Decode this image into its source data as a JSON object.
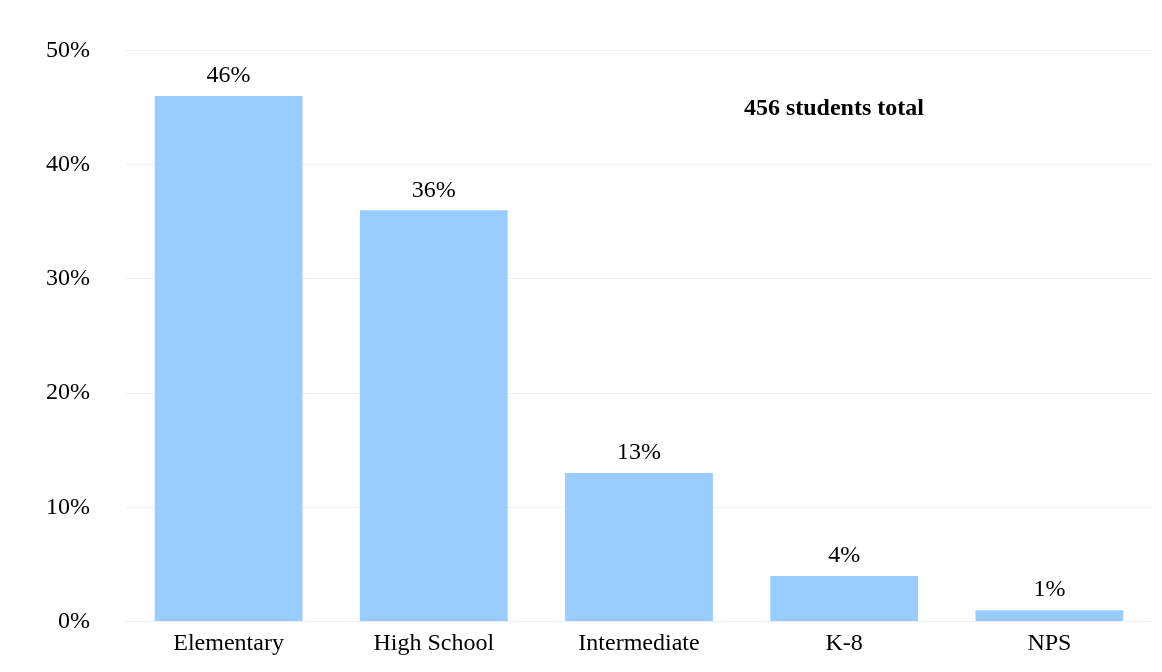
{
  "chart_data": {
    "type": "bar",
    "categories": [
      "Elementary",
      "High School",
      "Intermediate",
      "K-8",
      "NPS"
    ],
    "values": [
      46,
      36,
      13,
      4,
      1
    ],
    "value_labels": [
      "46%",
      "36%",
      "13%",
      "4%",
      "1%"
    ],
    "color": "#99ccff",
    "ylim": [
      0,
      50
    ],
    "yticks": [
      {
        "value": 0,
        "label": "0%"
      },
      {
        "value": 10,
        "label": "10%"
      },
      {
        "value": 20,
        "label": "20%"
      },
      {
        "value": 30,
        "label": "30%"
      },
      {
        "value": 40,
        "label": "40%"
      },
      {
        "value": 50,
        "label": "50%"
      }
    ],
    "grid": "y",
    "annotations": [
      "456 students total"
    ]
  }
}
